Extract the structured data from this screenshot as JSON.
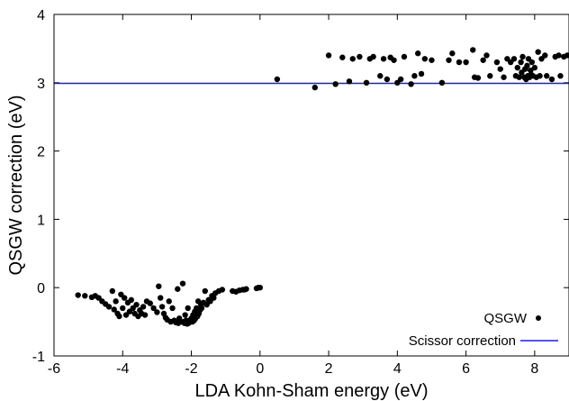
{
  "chart_data": {
    "type": "scatter",
    "title": "",
    "xlabel": "LDA Kohn-Sham energy (eV)",
    "ylabel": "QSGW correction (eV)",
    "xlim": [
      -6,
      9
    ],
    "ylim": [
      -1,
      4
    ],
    "x_ticks": [
      "-6",
      "-4",
      "-2",
      "0",
      "2",
      "4",
      "6",
      "8"
    ],
    "y_ticks": [
      "-1",
      "0",
      "1",
      "2",
      "3",
      "4"
    ],
    "grid": false,
    "legend_position": "bottom-right",
    "series": [
      {
        "name": "QSGW",
        "kind": "points",
        "color": "#000000",
        "points": [
          [
            -5.3,
            -0.11
          ],
          [
            -5.1,
            -0.12
          ],
          [
            -4.9,
            -0.14
          ],
          [
            -4.8,
            -0.12
          ],
          [
            -4.7,
            -0.15
          ],
          [
            -4.6,
            -0.2
          ],
          [
            -4.5,
            -0.24
          ],
          [
            -4.4,
            -0.28
          ],
          [
            -4.3,
            -0.05
          ],
          [
            -4.25,
            -0.32
          ],
          [
            -4.2,
            -0.2
          ],
          [
            -4.15,
            -0.38
          ],
          [
            -4.1,
            -0.42
          ],
          [
            -4.05,
            -0.1
          ],
          [
            -4.0,
            -0.3
          ],
          [
            -3.95,
            -0.15
          ],
          [
            -3.9,
            -0.4
          ],
          [
            -3.85,
            -0.22
          ],
          [
            -3.8,
            -0.35
          ],
          [
            -3.75,
            -0.18
          ],
          [
            -3.7,
            -0.3
          ],
          [
            -3.65,
            -0.38
          ],
          [
            -3.6,
            -0.25
          ],
          [
            -3.55,
            -0.42
          ],
          [
            -3.5,
            -0.33
          ],
          [
            -3.45,
            -0.38
          ],
          [
            -3.4,
            -0.28
          ],
          [
            -3.35,
            -0.4
          ],
          [
            -3.3,
            -0.2
          ],
          [
            -3.2,
            -0.23
          ],
          [
            -3.1,
            -0.3
          ],
          [
            -3.0,
            -0.36
          ],
          [
            -2.95,
            0.02
          ],
          [
            -2.9,
            -0.15
          ],
          [
            -2.85,
            -0.28
          ],
          [
            -2.8,
            -0.38
          ],
          [
            -2.75,
            -0.44
          ],
          [
            -2.7,
            -0.47
          ],
          [
            -2.65,
            -0.2
          ],
          [
            -2.6,
            -0.5
          ],
          [
            -2.55,
            -0.3
          ],
          [
            -2.5,
            -0.48
          ],
          [
            -2.45,
            -0.51
          ],
          [
            -2.4,
            -0.02
          ],
          [
            -2.38,
            -0.52
          ],
          [
            -2.35,
            -0.45
          ],
          [
            -2.3,
            -0.5
          ],
          [
            -2.25,
            0.06
          ],
          [
            -2.22,
            -0.5
          ],
          [
            -2.2,
            -0.52
          ],
          [
            -2.18,
            -0.4
          ],
          [
            -2.15,
            -0.48
          ],
          [
            -2.12,
            -0.53
          ],
          [
            -2.1,
            -0.3
          ],
          [
            -2.08,
            -0.52
          ],
          [
            -2.05,
            -0.48
          ],
          [
            -2.02,
            -0.5
          ],
          [
            -2.0,
            -0.45
          ],
          [
            -1.97,
            -0.5
          ],
          [
            -1.95,
            -0.4
          ],
          [
            -1.92,
            -0.48
          ],
          [
            -1.9,
            -0.35
          ],
          [
            -1.88,
            -0.45
          ],
          [
            -1.85,
            -0.3
          ],
          [
            -1.82,
            -0.42
          ],
          [
            -1.8,
            -0.2
          ],
          [
            -1.78,
            -0.38
          ],
          [
            -1.75,
            -0.33
          ],
          [
            -1.72,
            -0.25
          ],
          [
            -1.7,
            -0.3
          ],
          [
            -1.65,
            -0.22
          ],
          [
            -1.6,
            -0.05
          ],
          [
            -1.55,
            -0.25
          ],
          [
            -1.5,
            -0.18
          ],
          [
            -1.45,
            -0.2
          ],
          [
            -1.4,
            -0.12
          ],
          [
            -1.35,
            -0.15
          ],
          [
            -1.3,
            -0.08
          ],
          [
            -1.2,
            -0.05
          ],
          [
            -1.1,
            -0.03
          ],
          [
            -0.8,
            -0.05
          ],
          [
            -0.7,
            -0.06
          ],
          [
            -0.6,
            -0.04
          ],
          [
            -0.5,
            -0.03
          ],
          [
            -0.45,
            -0.03
          ],
          [
            -0.4,
            -0.02
          ],
          [
            -0.1,
            -0.01
          ],
          [
            -0.05,
            0.0
          ],
          [
            0.0,
            0.0
          ],
          [
            0.5,
            3.05
          ],
          [
            1.6,
            2.93
          ],
          [
            2.0,
            3.4
          ],
          [
            2.2,
            2.98
          ],
          [
            2.4,
            3.37
          ],
          [
            2.6,
            3.02
          ],
          [
            2.7,
            3.35
          ],
          [
            2.9,
            3.38
          ],
          [
            3.1,
            3.0
          ],
          [
            3.2,
            3.35
          ],
          [
            3.3,
            3.38
          ],
          [
            3.5,
            3.1
          ],
          [
            3.6,
            3.35
          ],
          [
            3.7,
            3.05
          ],
          [
            3.8,
            3.37
          ],
          [
            3.9,
            3.33
          ],
          [
            4.0,
            3.0
          ],
          [
            4.1,
            3.05
          ],
          [
            4.2,
            3.38
          ],
          [
            4.4,
            2.98
          ],
          [
            4.5,
            3.1
          ],
          [
            4.6,
            3.43
          ],
          [
            4.7,
            3.13
          ],
          [
            4.8,
            3.35
          ],
          [
            5.0,
            3.33
          ],
          [
            5.3,
            3.0
          ],
          [
            5.5,
            3.33
          ],
          [
            5.6,
            3.43
          ],
          [
            5.8,
            3.3
          ],
          [
            6.0,
            3.3
          ],
          [
            6.2,
            3.48
          ],
          [
            6.25,
            3.08
          ],
          [
            6.35,
            3.07
          ],
          [
            6.5,
            3.33
          ],
          [
            6.6,
            3.4
          ],
          [
            6.7,
            3.1
          ],
          [
            6.9,
            3.3
          ],
          [
            7.0,
            3.2
          ],
          [
            7.1,
            3.08
          ],
          [
            7.2,
            3.35
          ],
          [
            7.3,
            3.3
          ],
          [
            7.4,
            3.35
          ],
          [
            7.45,
            3.1
          ],
          [
            7.5,
            3.22
          ],
          [
            7.55,
            3.08
          ],
          [
            7.6,
            3.3
          ],
          [
            7.62,
            3.15
          ],
          [
            7.65,
            3.38
          ],
          [
            7.7,
            3.08
          ],
          [
            7.72,
            3.2
          ],
          [
            7.75,
            3.05
          ],
          [
            7.78,
            3.25
          ],
          [
            7.8,
            3.1
          ],
          [
            7.82,
            3.35
          ],
          [
            7.85,
            3.08
          ],
          [
            7.88,
            3.18
          ],
          [
            7.9,
            3.12
          ],
          [
            7.92,
            3.3
          ],
          [
            7.95,
            3.1
          ],
          [
            8.0,
            3.22
          ],
          [
            8.05,
            3.08
          ],
          [
            8.1,
            3.45
          ],
          [
            8.15,
            3.1
          ],
          [
            8.2,
            3.35
          ],
          [
            8.3,
            3.4
          ],
          [
            8.35,
            3.1
          ],
          [
            8.5,
            3.05
          ],
          [
            8.6,
            3.38
          ],
          [
            8.7,
            3.4
          ],
          [
            8.75,
            3.1
          ],
          [
            8.85,
            3.38
          ],
          [
            8.95,
            3.4
          ]
        ]
      },
      {
        "name": "Scissor correction",
        "kind": "hline",
        "color": "#1f1fcc",
        "y": 2.99
      }
    ]
  }
}
